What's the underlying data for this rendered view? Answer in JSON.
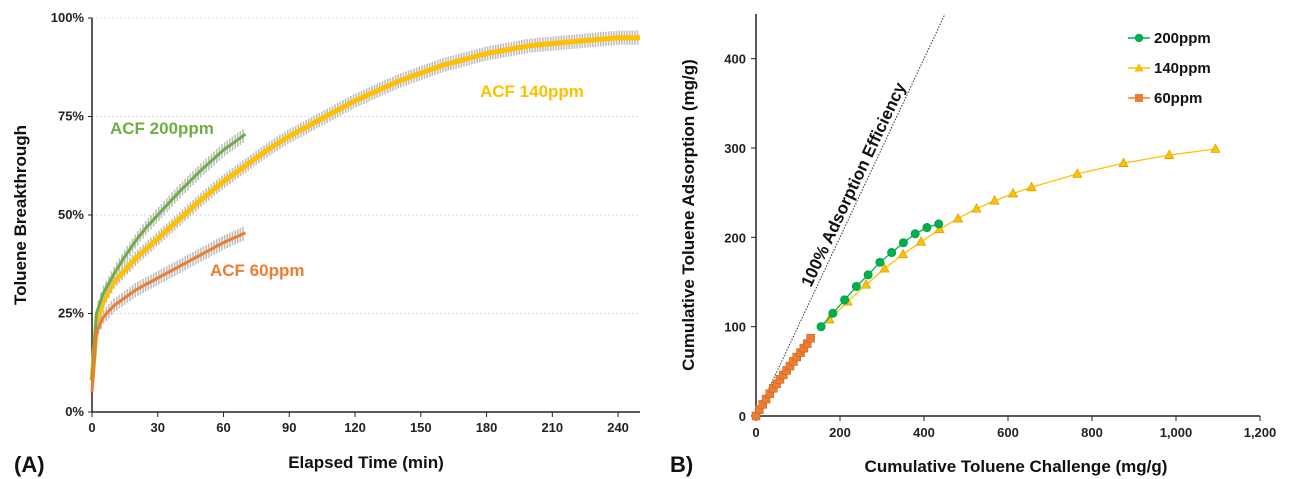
{
  "panels": {
    "a_label": "(A)",
    "b_label": "B)"
  },
  "chart_data": [
    {
      "type": "line",
      "panel": "(A)",
      "xlabel": "Elapsed Time (min)",
      "ylabel": "Toluene Breakthrough",
      "xlim": [
        0,
        250
      ],
      "ylim": [
        0,
        100
      ],
      "x_ticks": [
        0,
        30,
        60,
        90,
        120,
        150,
        180,
        210,
        240
      ],
      "y_ticks": [
        0,
        25,
        50,
        75,
        100
      ],
      "y_tick_labels": [
        "0%",
        "25%",
        "50%",
        "75%",
        "100%"
      ],
      "grid": "horizontal",
      "error_bar_color": "#bfbfbf",
      "series": [
        {
          "name": "ACF 200ppm",
          "color": "#70ad47",
          "x": [
            0,
            2,
            5,
            10,
            15,
            20,
            25,
            30,
            40,
            50,
            60,
            70
          ],
          "y": [
            8,
            25,
            30,
            35,
            39.5,
            43.5,
            47,
            50,
            56,
            61.5,
            66.5,
            70.5
          ]
        },
        {
          "name": "ACF 140ppm",
          "color": "#ffc000",
          "x": [
            0,
            2,
            5,
            10,
            20,
            30,
            40,
            50,
            60,
            70,
            80,
            90,
            100,
            120,
            140,
            160,
            180,
            200,
            220,
            240,
            250
          ],
          "y": [
            8,
            22,
            28,
            33,
            39,
            44,
            49,
            54,
            58.5,
            62.5,
            66.5,
            70,
            73,
            79,
            84,
            88,
            91,
            93,
            94,
            95,
            95
          ]
        },
        {
          "name": "ACF 60ppm",
          "color": "#ed7d31",
          "x": [
            0,
            2,
            5,
            10,
            20,
            30,
            40,
            50,
            60,
            70
          ],
          "y": [
            5,
            20,
            24,
            27,
            31,
            34,
            37,
            40,
            43,
            45.5
          ]
        }
      ]
    },
    {
      "type": "scatter",
      "panel": "B)",
      "xlabel": "Cumulative Toluene Challenge (mg/g)",
      "ylabel": "Cumulative Toluene Adsorption (mg/g)",
      "xlim": [
        0,
        1200
      ],
      "ylim": [
        0,
        450
      ],
      "x_ticks": [
        0,
        200,
        400,
        600,
        800,
        1000,
        1200
      ],
      "x_tick_labels": [
        "0",
        "200",
        "400",
        "600",
        "800",
        "1,000",
        "1,200"
      ],
      "y_ticks": [
        0,
        100,
        200,
        300,
        400
      ],
      "legend": "top-right",
      "reference_line": {
        "label": "100% Adsorption Efficiency",
        "x": [
          0,
          450
        ],
        "y": [
          0,
          450
        ]
      },
      "series": [
        {
          "name": "200ppm",
          "color": "#00b050",
          "marker": "circle",
          "x": [
            155,
            183,
            211,
            239,
            267,
            295,
            323,
            351,
            379,
            407,
            435
          ],
          "y": [
            100,
            115,
            130,
            145,
            158,
            172,
            183,
            194,
            204,
            211,
            215
          ]
        },
        {
          "name": "140ppm",
          "color": "#ffc000",
          "marker": "triangle",
          "x": [
            175,
            218,
            262,
            306,
            350,
            393,
            437,
            481,
            525,
            568,
            612,
            656,
            765,
            875,
            984,
            1094
          ],
          "y": [
            108,
            128,
            147,
            165,
            181,
            195,
            209,
            221,
            232,
            241,
            249,
            256,
            271,
            283,
            292,
            299
          ]
        },
        {
          "name": "60ppm",
          "color": "#ed7d31",
          "marker": "square",
          "x": [
            0,
            8,
            16,
            24,
            33,
            41,
            49,
            57,
            65,
            73,
            81,
            89,
            97,
            106,
            114,
            122,
            130
          ],
          "y": [
            0,
            7,
            13,
            19,
            25,
            31,
            36,
            41,
            46,
            51,
            56,
            61,
            66,
            71,
            76,
            81,
            87
          ]
        }
      ]
    }
  ]
}
